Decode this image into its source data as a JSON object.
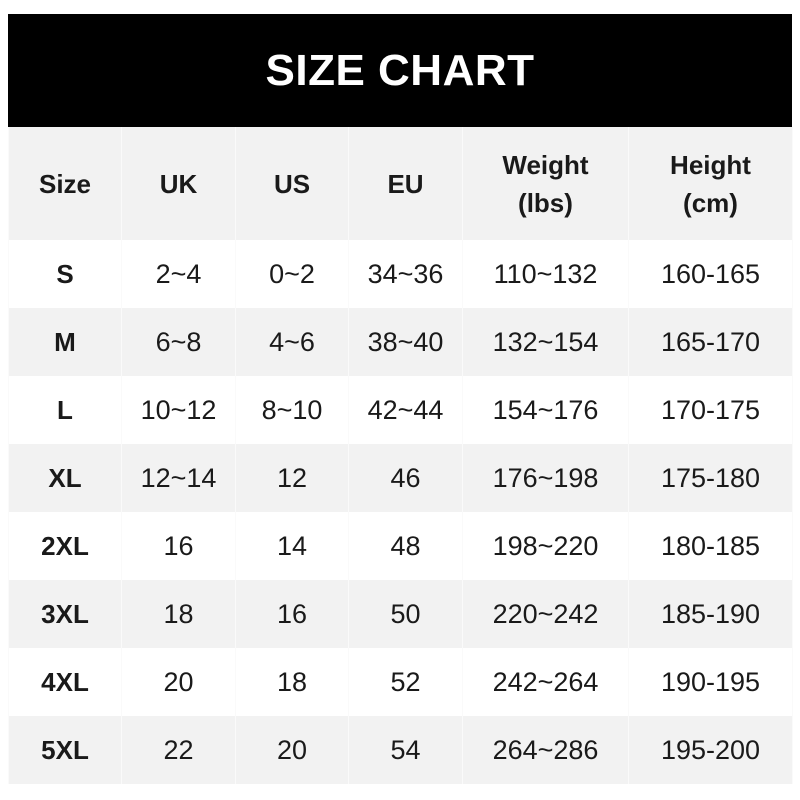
{
  "title": "SIZE CHART",
  "headers": [
    [
      "Size"
    ],
    [
      "UK"
    ],
    [
      "US"
    ],
    [
      "EU"
    ],
    [
      "Weight",
      "(lbs)"
    ],
    [
      "Height",
      "(cm)"
    ]
  ],
  "rows": [
    [
      "S",
      "2~4",
      "0~2",
      "34~36",
      "110~132",
      "160-165"
    ],
    [
      "M",
      "6~8",
      "4~6",
      "38~40",
      "132~154",
      "165-170"
    ],
    [
      "L",
      "10~12",
      "8~10",
      "42~44",
      "154~176",
      "170-175"
    ],
    [
      "XL",
      "12~14",
      "12",
      "46",
      "176~198",
      "175-180"
    ],
    [
      "2XL",
      "16",
      "14",
      "48",
      "198~220",
      "180-185"
    ],
    [
      "3XL",
      "18",
      "16",
      "50",
      "220~242",
      "185-190"
    ],
    [
      "4XL",
      "20",
      "18",
      "52",
      "242~264",
      "190-195"
    ],
    [
      "5XL",
      "22",
      "20",
      "54",
      "264~286",
      "195-200"
    ]
  ],
  "colors": {
    "title_bg": "#000000",
    "stripe": "#f2f2f2"
  }
}
